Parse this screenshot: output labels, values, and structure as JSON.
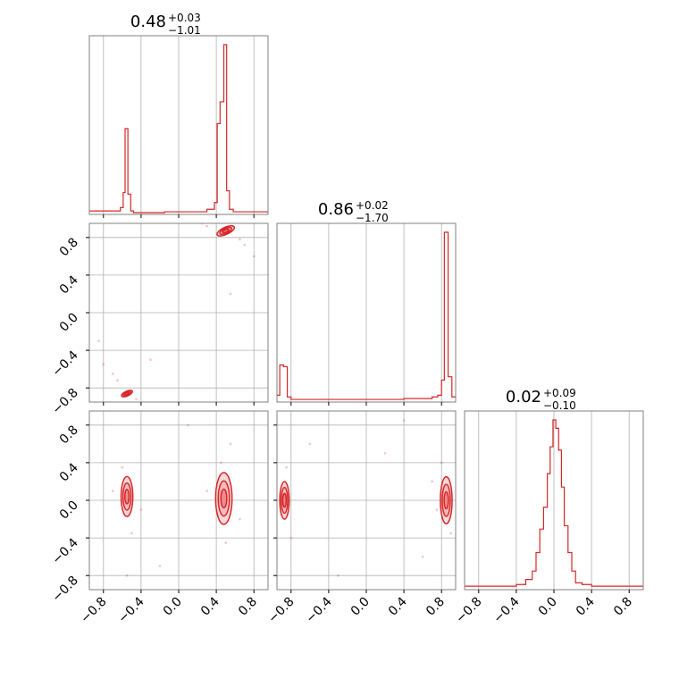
{
  "chart_data": {
    "type": "corner",
    "color": "#d62728",
    "fill_color": "#f4b3b6",
    "grid": true,
    "xlim": [
      -0.95,
      0.95
    ],
    "ylim": [
      -0.95,
      0.95
    ],
    "tick_labels": [
      "−0.8",
      "−0.4",
      "0.0",
      "0.4",
      "0.8"
    ],
    "tick_values": [
      -0.8,
      -0.4,
      0.0,
      0.4,
      0.8
    ],
    "titles": [
      {
        "median": "0.48",
        "plus": "+0.03",
        "minus": "−1.01"
      },
      {
        "median": "0.86",
        "plus": "+0.02",
        "minus": "−1.70"
      },
      {
        "median": "0.02",
        "plus": "+0.09",
        "minus": "−0.10"
      }
    ],
    "histograms": [
      {
        "param": 0,
        "bins": [
          {
            "x0": -0.95,
            "x1": -0.62,
            "h": 0.01
          },
          {
            "x0": -0.62,
            "x1": -0.59,
            "h": 0.03
          },
          {
            "x0": -0.59,
            "x1": -0.57,
            "h": 0.12
          },
          {
            "x0": -0.57,
            "x1": -0.54,
            "h": 0.5
          },
          {
            "x0": -0.54,
            "x1": -0.51,
            "h": 0.11
          },
          {
            "x0": -0.51,
            "x1": -0.48,
            "h": 0.01
          },
          {
            "x0": -0.48,
            "x1": -0.15,
            "h": 0.0
          },
          {
            "x0": -0.15,
            "x1": 0.3,
            "h": 0.005
          },
          {
            "x0": 0.3,
            "x1": 0.38,
            "h": 0.02
          },
          {
            "x0": 0.38,
            "x1": 0.41,
            "h": 0.06
          },
          {
            "x0": 0.41,
            "x1": 0.44,
            "h": 0.53
          },
          {
            "x0": 0.44,
            "x1": 0.48,
            "h": 0.66
          },
          {
            "x0": 0.48,
            "x1": 0.51,
            "h": 1.0
          },
          {
            "x0": 0.51,
            "x1": 0.54,
            "h": 0.13
          },
          {
            "x0": 0.54,
            "x1": 0.58,
            "h": 0.02
          },
          {
            "x0": 0.58,
            "x1": 0.95,
            "h": 0.005
          }
        ]
      },
      {
        "param": 1,
        "bins": [
          {
            "x0": -0.95,
            "x1": -0.92,
            "h": 0.03
          },
          {
            "x0": -0.92,
            "x1": -0.88,
            "h": 0.21
          },
          {
            "x0": -0.88,
            "x1": -0.84,
            "h": 0.2
          },
          {
            "x0": -0.84,
            "x1": -0.8,
            "h": 0.02
          },
          {
            "x0": -0.8,
            "x1": 0.4,
            "h": 0.005
          },
          {
            "x0": 0.4,
            "x1": 0.7,
            "h": 0.01
          },
          {
            "x0": 0.7,
            "x1": 0.76,
            "h": 0.02
          },
          {
            "x0": 0.76,
            "x1": 0.8,
            "h": 0.03
          },
          {
            "x0": 0.8,
            "x1": 0.83,
            "h": 0.12
          },
          {
            "x0": 0.83,
            "x1": 0.87,
            "h": 1.0
          },
          {
            "x0": 0.87,
            "x1": 0.91,
            "h": 0.14
          },
          {
            "x0": 0.91,
            "x1": 0.95,
            "h": 0.02
          }
        ]
      },
      {
        "param": 2,
        "bins": [
          {
            "x0": -0.95,
            "x1": -0.4,
            "h": 0.01
          },
          {
            "x0": -0.4,
            "x1": -0.3,
            "h": 0.02
          },
          {
            "x0": -0.3,
            "x1": -0.23,
            "h": 0.05
          },
          {
            "x0": -0.23,
            "x1": -0.19,
            "h": 0.1
          },
          {
            "x0": -0.19,
            "x1": -0.15,
            "h": 0.21
          },
          {
            "x0": -0.15,
            "x1": -0.11,
            "h": 0.35
          },
          {
            "x0": -0.11,
            "x1": -0.07,
            "h": 0.48
          },
          {
            "x0": -0.07,
            "x1": -0.04,
            "h": 0.68
          },
          {
            "x0": -0.04,
            "x1": -0.01,
            "h": 0.84
          },
          {
            "x0": -0.01,
            "x1": 0.02,
            "h": 1.0
          },
          {
            "x0": 0.02,
            "x1": 0.05,
            "h": 0.95
          },
          {
            "x0": 0.05,
            "x1": 0.08,
            "h": 0.82
          },
          {
            "x0": 0.08,
            "x1": 0.11,
            "h": 0.6
          },
          {
            "x0": 0.11,
            "x1": 0.15,
            "h": 0.37
          },
          {
            "x0": 0.15,
            "x1": 0.19,
            "h": 0.21
          },
          {
            "x0": 0.19,
            "x1": 0.23,
            "h": 0.1
          },
          {
            "x0": 0.23,
            "x1": 0.3,
            "h": 0.03
          },
          {
            "x0": 0.3,
            "x1": 0.4,
            "h": 0.02
          },
          {
            "x0": 0.4,
            "x1": 0.95,
            "h": 0.01
          }
        ]
      }
    ],
    "contour_panels": [
      {
        "x_param": 0,
        "y_param": 1,
        "modes": [
          {
            "cx": 0.5,
            "cy": 0.87,
            "rx": 0.08,
            "ry": 0.03,
            "rot": 25
          },
          {
            "cx": -0.55,
            "cy": -0.86,
            "rx": 0.05,
            "ry": 0.02,
            "rot": 25
          }
        ],
        "scatter": [
          {
            "x": 0.3,
            "y": 0.92
          },
          {
            "x": 0.25,
            "y": 0.95
          },
          {
            "x": 0.65,
            "y": 0.78
          },
          {
            "x": 0.7,
            "y": 0.72
          },
          {
            "x": -0.65,
            "y": -0.72
          },
          {
            "x": -0.7,
            "y": -0.65
          },
          {
            "x": -0.45,
            "y": -0.92
          },
          {
            "x": -0.8,
            "y": -0.55
          },
          {
            "x": -0.85,
            "y": -0.3
          },
          {
            "x": 0.8,
            "y": 0.6
          },
          {
            "x": 0.55,
            "y": 0.2
          },
          {
            "x": -0.3,
            "y": -0.5
          }
        ]
      },
      {
        "x_param": 0,
        "y_param": 2,
        "modes": [
          {
            "cx": -0.55,
            "cy": 0.04,
            "rx": 0.05,
            "ry": 0.17,
            "rot": 0
          },
          {
            "cx": 0.48,
            "cy": 0.02,
            "rx": 0.07,
            "ry": 0.22,
            "rot": 0
          }
        ],
        "scatter": [
          {
            "x": -0.6,
            "y": 0.35
          },
          {
            "x": -0.5,
            "y": -0.35
          },
          {
            "x": 0.45,
            "y": 0.4
          },
          {
            "x": 0.5,
            "y": -0.45
          },
          {
            "x": 0.3,
            "y": 0.1
          },
          {
            "x": 0.65,
            "y": -0.2
          },
          {
            "x": -0.7,
            "y": 0.1
          },
          {
            "x": -0.4,
            "y": -0.1
          },
          {
            "x": 0.1,
            "y": 0.8
          },
          {
            "x": -0.2,
            "y": -0.7
          },
          {
            "x": 0.55,
            "y": 0.6
          },
          {
            "x": -0.55,
            "y": -0.8
          }
        ]
      },
      {
        "x_param": 1,
        "y_param": 2,
        "modes": [
          {
            "cx": -0.87,
            "cy": 0.0,
            "rx": 0.04,
            "ry": 0.16,
            "rot": 0
          },
          {
            "cx": 0.85,
            "cy": 0.0,
            "rx": 0.05,
            "ry": 0.2,
            "rot": 0
          }
        ],
        "scatter": [
          {
            "x": -0.85,
            "y": 0.35
          },
          {
            "x": -0.8,
            "y": -0.4
          },
          {
            "x": 0.8,
            "y": 0.4
          },
          {
            "x": 0.9,
            "y": -0.35
          },
          {
            "x": 0.7,
            "y": 0.2
          },
          {
            "x": 0.6,
            "y": -0.6
          },
          {
            "x": -0.6,
            "y": 0.6
          },
          {
            "x": 0.4,
            "y": 0.85
          },
          {
            "x": -0.3,
            "y": -0.8
          },
          {
            "x": 0.75,
            "y": -0.1
          },
          {
            "x": -0.9,
            "y": -0.15
          },
          {
            "x": 0.2,
            "y": 0.5
          }
        ]
      }
    ]
  }
}
